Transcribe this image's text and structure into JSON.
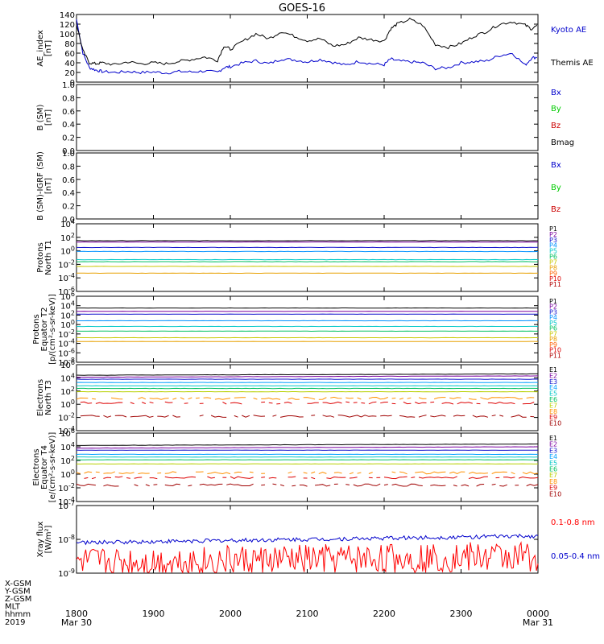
{
  "title": "GOES-16",
  "date": "2019",
  "x_axis": {
    "row_labels": [
      "X-GSM",
      "Y-GSM",
      "Z-GSM",
      "MLT",
      "hhmm"
    ],
    "ticks": [
      "1800",
      "1900",
      "2000",
      "2100",
      "2200",
      "2300",
      "0000"
    ],
    "start_date": "Mar 30",
    "end_date": "Mar 31"
  },
  "chart_data": [
    {
      "type": "line",
      "ylabel": "AE_index [nT]",
      "ylim": [
        0,
        140
      ],
      "yticks": [
        "0",
        "20",
        "40",
        "60",
        "80",
        "100",
        "120",
        "140"
      ],
      "x": [
        1800,
        1805,
        1810,
        1815,
        1820,
        1830,
        1840,
        1850,
        1900,
        1910,
        1920,
        1930,
        1940,
        1950,
        1955,
        2000,
        2010,
        2020,
        2030,
        2040,
        2050,
        2100,
        2110,
        2120,
        2130,
        2140,
        2150,
        2200,
        2205,
        2210,
        2220,
        2230,
        2240,
        2250,
        2300,
        2310,
        2320,
        2330,
        2340,
        2350,
        2355,
        2400
      ],
      "series": [
        {
          "name": "Kyoto AE",
          "color": "#0000cc",
          "values": [
            130,
            60,
            30,
            25,
            22,
            20,
            22,
            20,
            21,
            19,
            22,
            21,
            23,
            20,
            30,
            32,
            40,
            44,
            38,
            48,
            46,
            42,
            47,
            41,
            35,
            43,
            38,
            36,
            48,
            44,
            42,
            40,
            28,
            30,
            40,
            42,
            44,
            55,
            60,
            35,
            50,
            52
          ]
        },
        {
          "name": "Themis AE",
          "color": "#000000",
          "values": [
            120,
            65,
            40,
            38,
            40,
            36,
            42,
            38,
            40,
            38,
            43,
            47,
            52,
            45,
            75,
            68,
            85,
            100,
            90,
            105,
            95,
            86,
            90,
            75,
            78,
            92,
            88,
            85,
            110,
            120,
            130,
            118,
            78,
            72,
            80,
            95,
            105,
            120,
            125,
            118,
            110,
            118
          ]
        }
      ]
    },
    {
      "type": "line",
      "ylabel": "B (SM) [nT]",
      "ylim": [
        0,
        1
      ],
      "yticks": [
        "0.0",
        "0.2",
        "0.4",
        "0.6",
        "0.8",
        "1.0"
      ],
      "series": [
        {
          "name": "Bx",
          "color": "#0000cc",
          "values": []
        },
        {
          "name": "By",
          "color": "#00cc00",
          "values": []
        },
        {
          "name": "Bz",
          "color": "#cc0000",
          "values": []
        },
        {
          "name": "Bmag",
          "color": "#000000",
          "values": []
        }
      ]
    },
    {
      "type": "line",
      "ylabel": "B (SM)-IGRF (SM) [nT]",
      "ylim": [
        0,
        1
      ],
      "yticks": [
        "0.0",
        "0.2",
        "0.4",
        "0.6",
        "0.8",
        "1.0"
      ],
      "series": [
        {
          "name": "Bx",
          "color": "#0000cc",
          "values": []
        },
        {
          "name": "By",
          "color": "#00cc00",
          "values": []
        },
        {
          "name": "Bz",
          "color": "#cc0000",
          "values": []
        }
      ]
    },
    {
      "type": "line",
      "ylabel": "Protons North T1",
      "yscale": "log",
      "ylim": [
        -6,
        4
      ],
      "yticks": [
        "10^-6",
        "10^-4",
        "10^-2",
        "10^0",
        "10^2",
        "10^4"
      ],
      "series": [
        {
          "name": "P1",
          "color": "#000000",
          "value": 1.5
        },
        {
          "name": "P2",
          "color": "#7a00a0",
          "value": 1.3
        },
        {
          "name": "P3",
          "color": "#1010cc",
          "value": 0.5
        },
        {
          "name": "P4",
          "color": "#0090ff",
          "value": -0.1
        },
        {
          "name": "P5",
          "color": "#00c8c8",
          "value": -1.3
        },
        {
          "name": "P6",
          "color": "#00c060",
          "value": -1.6
        },
        {
          "name": "P7",
          "color": "#c8c800",
          "value": -2.3
        },
        {
          "name": "P8",
          "color": "#e8a000",
          "value": -3.3
        },
        {
          "name": "P9",
          "color": "#ff6000",
          "value": null
        },
        {
          "name": "P10",
          "color": "#dd0000",
          "value": null
        },
        {
          "name": "P11",
          "color": "#b00000",
          "value": null
        }
      ]
    },
    {
      "type": "line",
      "ylabel": "Protons Equator T2 [p/(cm²-s-sr-keV)]",
      "yscale": "log",
      "ylim": [
        -8,
        6
      ],
      "yticks": [
        "10^-8",
        "10^-6",
        "10^-4",
        "10^-2",
        "10^0",
        "10^2",
        "10^4",
        "10^6"
      ],
      "series": [
        {
          "name": "P1",
          "color": "#000000",
          "value": 3.5
        },
        {
          "name": "P2",
          "color": "#7a00a0",
          "value": 2.8
        },
        {
          "name": "P3",
          "color": "#1010cc",
          "value": 2.2
        },
        {
          "name": "P4",
          "color": "#0090ff",
          "value": 0.8
        },
        {
          "name": "P5",
          "color": "#00c8c8",
          "value": -0.4
        },
        {
          "name": "P6",
          "color": "#00c060",
          "value": -1.4
        },
        {
          "name": "P7",
          "color": "#c8c800",
          "value": -2.8
        },
        {
          "name": "P8",
          "color": "#e8a000",
          "value": -3.6
        },
        {
          "name": "P9",
          "color": "#ff6000",
          "value": null
        },
        {
          "name": "P10",
          "color": "#dd0000",
          "value": null
        },
        {
          "name": "P11",
          "color": "#b00000",
          "value": null
        }
      ]
    },
    {
      "type": "line",
      "ylabel": "Electrons North T3",
      "yscale": "log",
      "ylim": [
        -4,
        6
      ],
      "yticks": [
        "10^-4",
        "10^-2",
        "10^0",
        "10^2",
        "10^4",
        "10^6"
      ],
      "series": [
        {
          "name": "E1",
          "color": "#000000",
          "value": 4.4
        },
        {
          "name": "E2",
          "color": "#7a00a0",
          "value": 4.1
        },
        {
          "name": "E3",
          "color": "#1010cc",
          "value": 3.8
        },
        {
          "name": "E4",
          "color": "#00a0ff",
          "value": 3.3
        },
        {
          "name": "E5",
          "color": "#00c8c8",
          "value": 2.8
        },
        {
          "name": "E6",
          "color": "#00c060",
          "value": 2.4
        },
        {
          "name": "E7",
          "color": "#b8d000",
          "value": 1.9
        },
        {
          "name": "E8",
          "color": "#ff9000",
          "value": 0.9
        },
        {
          "name": "E9",
          "color": "#dd0000",
          "value": 0.2
        },
        {
          "name": "E10",
          "color": "#a00000",
          "value": -1.8
        }
      ]
    },
    {
      "type": "line",
      "ylabel": "Electrons Equator T4 [e/(cm²-s-sr-keV)]",
      "yscale": "log",
      "ylim": [
        -4,
        6
      ],
      "yticks": [
        "10^-4",
        "10^-2",
        "10^0",
        "10^2",
        "10^4",
        "10^6"
      ],
      "series": [
        {
          "name": "E1",
          "color": "#000000",
          "value": 4.2
        },
        {
          "name": "E2",
          "color": "#7a00a0",
          "value": 3.8
        },
        {
          "name": "E3",
          "color": "#1010cc",
          "value": 3.5
        },
        {
          "name": "E4",
          "color": "#00a0ff",
          "value": 2.9
        },
        {
          "name": "E5",
          "color": "#00c8c8",
          "value": 2.5
        },
        {
          "name": "E6",
          "color": "#00c060",
          "value": 2.1
        },
        {
          "name": "E7",
          "color": "#b8d000",
          "value": 1.5
        },
        {
          "name": "E8",
          "color": "#ff9000",
          "value": 0.2
        },
        {
          "name": "E9",
          "color": "#dd0000",
          "value": -0.5
        },
        {
          "name": "E10",
          "color": "#a00000",
          "value": -1.6
        }
      ]
    },
    {
      "type": "line",
      "ylabel": "Xray flux [W/m^2]",
      "yscale": "log",
      "ylim": [
        -9,
        -7
      ],
      "yticks": [
        "10^-9",
        "10^-8",
        "10^-7"
      ],
      "series": [
        {
          "name": "0.1-0.8 nm",
          "color": "#ff0000",
          "value": -8.7
        },
        {
          "name": "0.05-0.4 nm",
          "color": "#0000cc",
          "value": -8.1
        }
      ]
    }
  ]
}
